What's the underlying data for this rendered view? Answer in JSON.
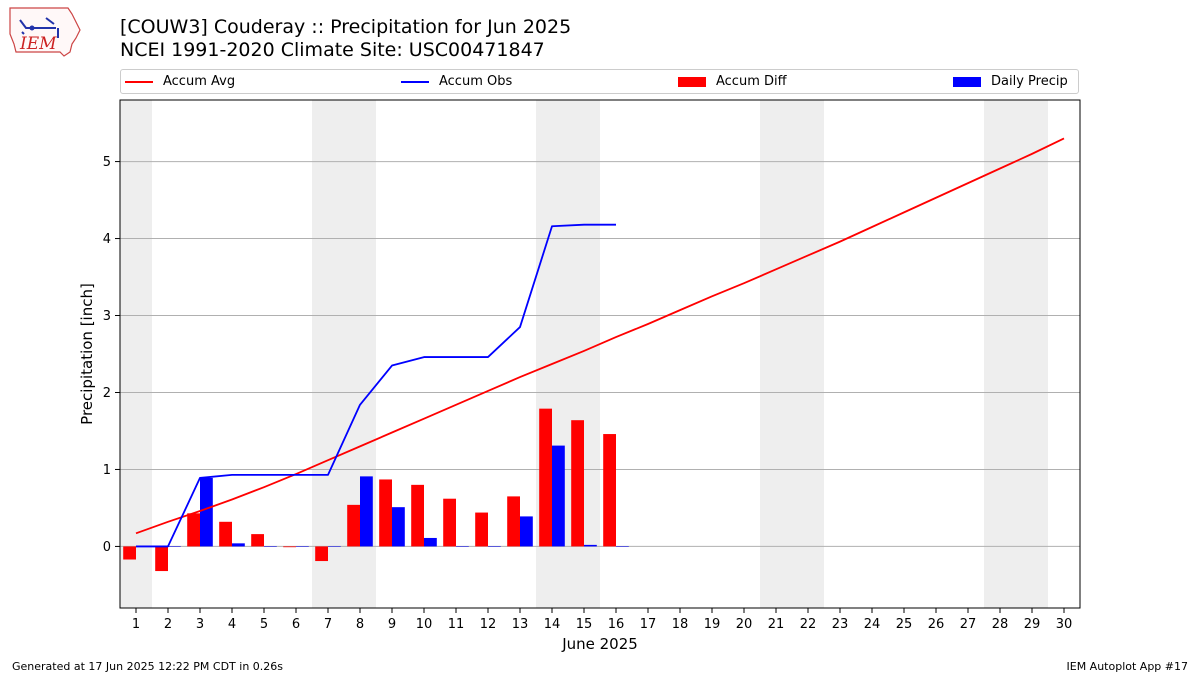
{
  "header": {
    "title_line1": "[COUW3] Couderay :: Precipitation for Jun 2025",
    "title_line2": "NCEI 1991-2020 Climate Site: USC00471847",
    "logo_text": "IEM"
  },
  "footer": {
    "left": "Generated at 17 Jun 2025 12:22 PM CDT in 0.26s",
    "right": "IEM Autoplot App #17"
  },
  "colors": {
    "avg": "#ff0000",
    "obs": "#0000ff",
    "diff": "#ff0000",
    "daily": "#0000ff",
    "weekend": "#eeeeee",
    "grid": "#b0b0b0"
  },
  "chart_data": {
    "type": "bar",
    "xlabel": "June 2025",
    "ylabel": "Precipitation [inch]",
    "xlim": [
      0.5,
      30.5
    ],
    "ylim": [
      -0.8,
      5.8
    ],
    "yticks": [
      0,
      1,
      2,
      3,
      4,
      5
    ],
    "days": [
      1,
      2,
      3,
      4,
      5,
      6,
      7,
      8,
      9,
      10,
      11,
      12,
      13,
      14,
      15,
      16,
      17,
      18,
      19,
      20,
      21,
      22,
      23,
      24,
      25,
      26,
      27,
      28,
      29,
      30
    ],
    "weekend_days": [
      1,
      7,
      8,
      14,
      15,
      21,
      22,
      28,
      29
    ],
    "grid": "horizontal",
    "legend_position": "top",
    "series": [
      {
        "name": "Accum Avg",
        "kind": "line",
        "x": [
          1,
          2,
          3,
          4,
          5,
          6,
          7,
          8,
          9,
          10,
          11,
          12,
          13,
          14,
          15,
          16,
          17,
          18,
          19,
          20,
          21,
          22,
          23,
          24,
          25,
          26,
          27,
          28,
          29,
          30
        ],
        "values": [
          0.17,
          0.32,
          0.46,
          0.61,
          0.77,
          0.94,
          1.12,
          1.3,
          1.48,
          1.66,
          1.84,
          2.02,
          2.2,
          2.37,
          2.54,
          2.72,
          2.89,
          3.07,
          3.25,
          3.42,
          3.6,
          3.78,
          3.96,
          4.15,
          4.34,
          4.53,
          4.72,
          4.91,
          5.1,
          5.3
        ]
      },
      {
        "name": "Accum Obs",
        "kind": "line",
        "x": [
          1,
          2,
          3,
          4,
          5,
          6,
          7,
          8,
          9,
          10,
          11,
          12,
          13,
          14,
          15,
          16
        ],
        "values": [
          0.0,
          0.0,
          0.89,
          0.93,
          0.93,
          0.93,
          0.93,
          1.84,
          2.35,
          2.46,
          2.46,
          2.46,
          2.85,
          4.16,
          4.18,
          4.18
        ]
      },
      {
        "name": "Accum Diff",
        "kind": "bar",
        "x": [
          1,
          2,
          3,
          4,
          5,
          6,
          7,
          8,
          9,
          10,
          11,
          12,
          13,
          14,
          15,
          16
        ],
        "values": [
          -0.17,
          -0.32,
          0.43,
          0.32,
          0.16,
          -0.01,
          -0.19,
          0.54,
          0.87,
          0.8,
          0.62,
          0.44,
          0.65,
          1.79,
          1.64,
          1.46
        ]
      },
      {
        "name": "Daily Precip",
        "kind": "bar",
        "x": [
          1,
          2,
          3,
          4,
          5,
          6,
          7,
          8,
          9,
          10,
          11,
          12,
          13,
          14,
          15,
          16
        ],
        "values": [
          0.0,
          0.0,
          0.89,
          0.04,
          0.0,
          0.0,
          0.0,
          0.91,
          0.51,
          0.11,
          0.0,
          0.0,
          0.39,
          1.31,
          0.02,
          0.0
        ]
      }
    ]
  }
}
